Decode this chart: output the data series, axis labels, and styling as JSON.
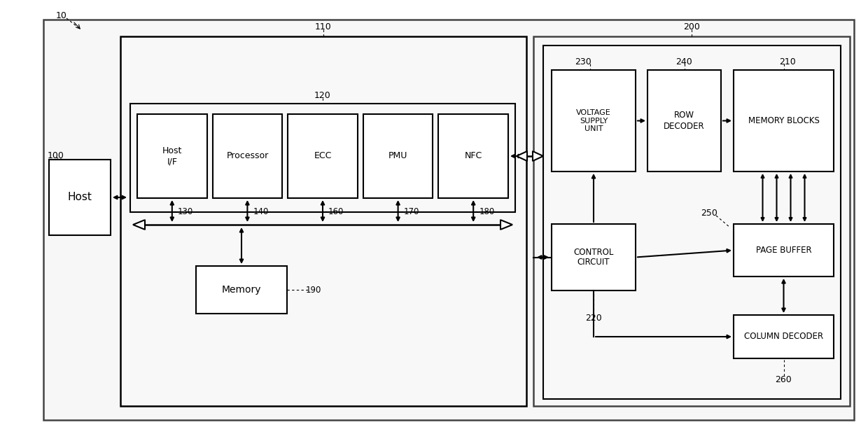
{
  "fig_bg": "#ffffff",
  "host_text": "Host",
  "hostif_text": "Host\nI/F",
  "processor_text": "Processor",
  "ecc_text": "ECC",
  "pmu_text": "PMU",
  "nfc_text": "NFC",
  "memory_text": "Memory",
  "voltage_text": "VOLTAGE\nSUPPLY\nUNIT",
  "row_decoder_text": "ROW\nDECODER",
  "memory_blocks_text": "MEMORY BLOCKS",
  "control_circuit_text": "CONTROL\nCIRCUIT",
  "page_buffer_text": "PAGE BUFFER",
  "column_decoder_text": "COLUMN DECODER",
  "label_10": "10",
  "label_100": "100",
  "label_110": "110",
  "label_120": "120",
  "label_130": "130",
  "label_140": "140",
  "label_160": "160",
  "label_170": "170",
  "label_180": "180",
  "label_190": "190",
  "label_200": "200",
  "label_210": "210",
  "label_220": "220",
  "label_230": "230",
  "label_240": "240",
  "label_250": "250",
  "label_260": "260"
}
